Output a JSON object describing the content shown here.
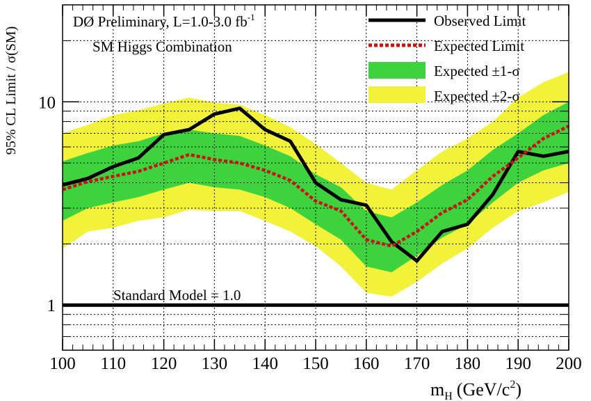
{
  "chart_data": {
    "type": "line",
    "annotation_text": "DØ Preliminary, L=1.0-3.0 fb",
    "annotation_superscript": "-1",
    "annotation_text2": "SM Higgs Combination",
    "reference_line_label": "Standard Model = 1.0",
    "reference_value": 1.0,
    "xlabel_main": "m",
    "xlabel_sub": "H",
    "xlabel_unit": "(GeV/c",
    "xlabel_unit_sup": "2",
    "xlabel_unit_end": ")",
    "ylabel": "95% CL Limit / σ(SM)",
    "y_scale": "log",
    "xlim": [
      100,
      200
    ],
    "ylim": [
      0.6,
      30
    ],
    "x_ticks": [
      "100",
      "110",
      "120",
      "130",
      "140",
      "150",
      "160",
      "170",
      "180",
      "190",
      "200"
    ],
    "y_ticks": [
      "1",
      "10"
    ],
    "grid": true,
    "legend_position": "top-right",
    "x": [
      100,
      105,
      110,
      115,
      120,
      125,
      130,
      135,
      140,
      145,
      150,
      155,
      160,
      165,
      170,
      175,
      180,
      185,
      190,
      195,
      200
    ],
    "series": [
      {
        "name": "Observed Limit",
        "style": "solid",
        "color": "#000000",
        "values": [
          3.9,
          4.2,
          4.8,
          5.3,
          6.9,
          7.3,
          8.7,
          9.3,
          7.3,
          6.4,
          4.0,
          3.3,
          3.1,
          2.05,
          1.65,
          2.3,
          2.5,
          3.5,
          5.7,
          5.4,
          5.7
        ]
      },
      {
        "name": "Expected Limit",
        "style": "dashed",
        "color": "#cc1111",
        "values": [
          3.7,
          4.05,
          4.3,
          4.55,
          5.0,
          5.5,
          5.2,
          5.0,
          4.6,
          4.1,
          3.25,
          2.9,
          2.1,
          1.95,
          2.3,
          2.85,
          3.3,
          4.3,
          5.3,
          6.6,
          7.6
        ]
      }
    ],
    "bands": [
      {
        "name": "Expected ±2-σ",
        "color": "#f2f23a",
        "lower": [
          1.9,
          2.3,
          2.4,
          2.6,
          2.7,
          2.95,
          2.9,
          2.9,
          2.6,
          2.3,
          1.95,
          1.55,
          1.15,
          1.1,
          1.3,
          1.6,
          1.9,
          2.4,
          2.9,
          3.2,
          3.6
        ],
        "upper": [
          7.0,
          7.7,
          8.6,
          9.1,
          9.8,
          10.5,
          9.9,
          9.7,
          8.6,
          7.5,
          6.2,
          5.0,
          4.0,
          3.7,
          4.6,
          5.7,
          6.6,
          8.0,
          10.5,
          12.5,
          14.0
        ]
      },
      {
        "name": "Expected ±1-σ",
        "color": "#3fd23f",
        "lower": [
          2.6,
          3.0,
          3.2,
          3.4,
          3.7,
          4.0,
          3.8,
          3.7,
          3.4,
          3.0,
          2.5,
          2.1,
          1.55,
          1.45,
          1.75,
          2.15,
          2.5,
          3.2,
          4.0,
          4.6,
          5.0
        ],
        "upper": [
          5.1,
          5.6,
          6.1,
          6.4,
          7.0,
          7.3,
          7.0,
          6.8,
          6.1,
          5.4,
          4.4,
          3.8,
          2.9,
          2.7,
          3.2,
          3.9,
          4.6,
          5.8,
          7.0,
          8.6,
          10.0
        ]
      }
    ]
  }
}
